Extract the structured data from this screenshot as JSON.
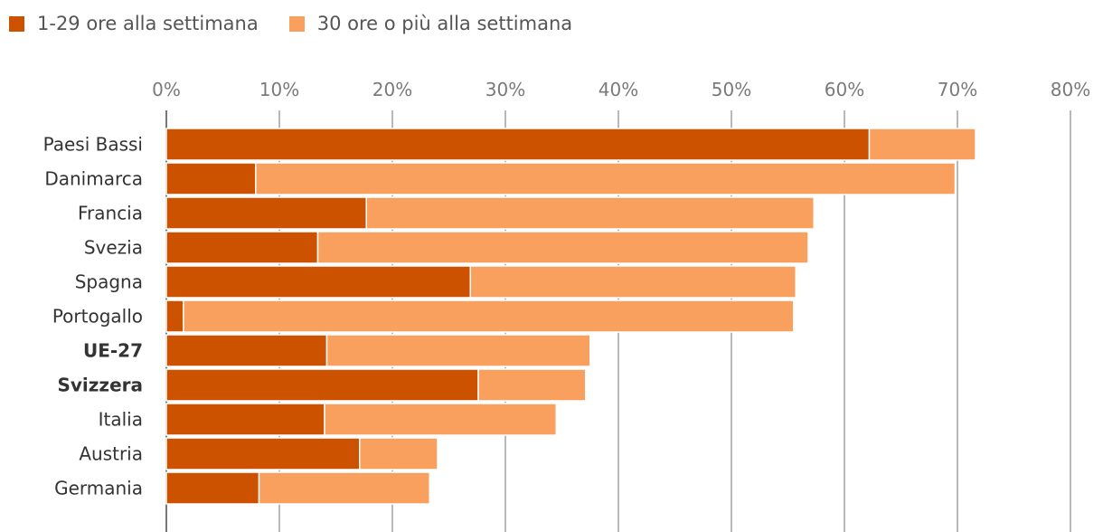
{
  "chart_data": {
    "type": "bar",
    "orientation": "horizontal",
    "stacked": true,
    "categories": [
      "Paesi Bassi",
      "Danimarca",
      "Francia",
      "Svezia",
      "Spagna",
      "Portogallo",
      "UE-27",
      "Svizzera",
      "Italia",
      "Austria",
      "Germania"
    ],
    "highlighted": [
      "UE-27",
      "Svizzera"
    ],
    "series": [
      {
        "name": "1-29 ore alla settimana",
        "color": "#cc5200",
        "values": [
          62.2,
          7.9,
          17.7,
          13.4,
          26.9,
          1.5,
          14.2,
          27.6,
          14.0,
          17.1,
          8.2
        ]
      },
      {
        "name": "30 ore o più alla settimana",
        "color": "#f9a05e",
        "values": [
          9.4,
          61.9,
          39.6,
          43.4,
          28.8,
          54.0,
          23.3,
          9.5,
          20.5,
          6.9,
          15.1
        ]
      }
    ],
    "xlim": [
      0,
      80
    ],
    "xticks": [
      0,
      10,
      20,
      30,
      40,
      50,
      60,
      70,
      80
    ],
    "tick_suffix": "%",
    "gridlines": true,
    "legend_position": "top-left"
  }
}
